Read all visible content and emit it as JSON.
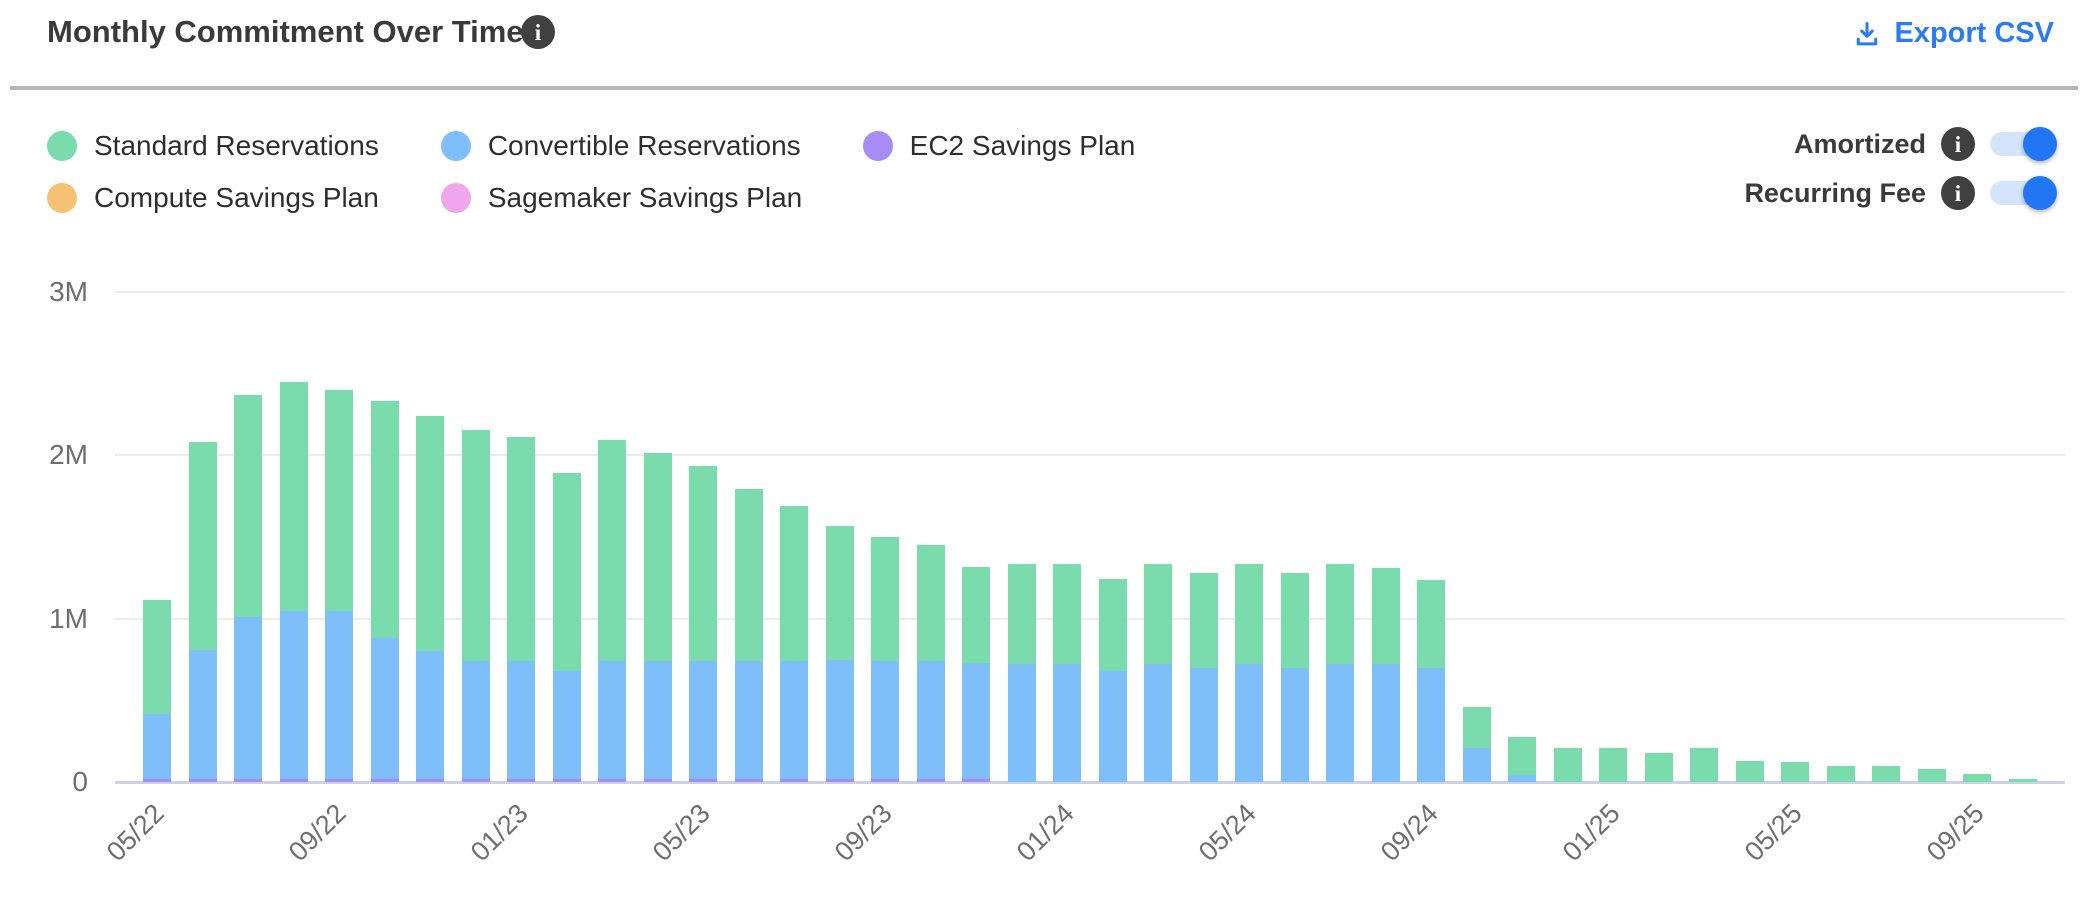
{
  "header": {
    "title": "Monthly Commitment Over Time",
    "export_label": "Export CSV",
    "info_glyph": "i"
  },
  "legend": {
    "items": [
      {
        "label": "Standard Reservations",
        "color": "#7adbad"
      },
      {
        "label": "Convertible Reservations",
        "color": "#7ebef9"
      },
      {
        "label": "EC2 Savings Plan",
        "color": "#a78cf8"
      },
      {
        "label": "Compute Savings Plan",
        "color": "#f5c274"
      },
      {
        "label": "Sagemaker Savings Plan",
        "color": "#f0a6ec"
      }
    ]
  },
  "toggles": [
    {
      "label": "Amortized",
      "state": "on"
    },
    {
      "label": "Recurring Fee",
      "state": "on"
    }
  ],
  "colors": {
    "export_link": "#2b7bf3",
    "toggle_knob": "#2176f3",
    "toggle_track": "#d3e4fb",
    "axis_text": "#6e6e6e",
    "baseline": "#cbd1e8",
    "gridline": "#ececec"
  },
  "chart_data": {
    "type": "bar",
    "stacked": true,
    "title": "Monthly Commitment Over Time",
    "xlabel": "",
    "ylabel": "",
    "unit": "M (values in millions)",
    "ylim_m": [
      0,
      3
    ],
    "y_ticks": [
      "0",
      "1M",
      "2M",
      "3M"
    ],
    "grid": "horizontal",
    "legend_position": "top-left",
    "x": [
      "05/22",
      "06/22",
      "07/22",
      "08/22",
      "09/22",
      "10/22",
      "11/22",
      "12/22",
      "01/23",
      "02/23",
      "03/23",
      "04/23",
      "05/23",
      "06/23",
      "07/23",
      "08/23",
      "09/23",
      "10/23",
      "11/23",
      "12/23",
      "01/24",
      "02/24",
      "03/24",
      "04/24",
      "05/24",
      "06/24",
      "07/24",
      "08/24",
      "09/24",
      "10/24",
      "11/24",
      "12/24",
      "01/25",
      "02/25",
      "03/25",
      "04/25",
      "05/25",
      "06/25",
      "07/25",
      "08/25",
      "09/25",
      "10/25"
    ],
    "x_shown_ticks": [
      "05/22",
      "09/22",
      "01/23",
      "05/23",
      "09/23",
      "01/24",
      "05/24",
      "09/24",
      "01/25",
      "05/25",
      "09/25"
    ],
    "series": [
      {
        "name": "EC2 Savings Plan",
        "color": "#a78cf8",
        "values": [
          0.02,
          0.02,
          0.02,
          0.02,
          0.02,
          0.02,
          0.02,
          0.02,
          0.02,
          0.02,
          0.02,
          0.02,
          0.02,
          0.02,
          0.02,
          0.02,
          0.02,
          0.02,
          0.02,
          0,
          0,
          0,
          0,
          0,
          0,
          0,
          0,
          0,
          0,
          0,
          0,
          0,
          0,
          0,
          0,
          0,
          0,
          0,
          0,
          0,
          0,
          0
        ]
      },
      {
        "name": "Convertible Reservations",
        "color": "#7ebef9",
        "values": [
          0.4,
          0.79,
          0.99,
          1.03,
          1.03,
          0.86,
          0.78,
          0.72,
          0.72,
          0.66,
          0.72,
          0.72,
          0.72,
          0.72,
          0.72,
          0.73,
          0.72,
          0.72,
          0.71,
          0.72,
          0.72,
          0.68,
          0.72,
          0.7,
          0.72,
          0.7,
          0.72,
          0.72,
          0.7,
          0.21,
          0.04,
          0,
          0,
          0,
          0,
          0,
          0,
          0,
          0,
          0,
          0,
          0
        ]
      },
      {
        "name": "Standard Reservations",
        "color": "#7adbad",
        "values": [
          0.7,
          1.27,
          1.36,
          1.4,
          1.35,
          1.45,
          1.44,
          1.41,
          1.37,
          1.21,
          1.35,
          1.27,
          1.19,
          1.05,
          0.95,
          0.82,
          0.76,
          0.71,
          0.59,
          0.61,
          0.61,
          0.56,
          0.61,
          0.58,
          0.61,
          0.58,
          0.61,
          0.59,
          0.54,
          0.25,
          0.23,
          0.21,
          0.21,
          0.18,
          0.21,
          0.13,
          0.12,
          0.1,
          0.1,
          0.08,
          0.05,
          0.02
        ]
      },
      {
        "name": "Compute Savings Plan",
        "color": "#f5c274",
        "values": [
          0,
          0,
          0,
          0,
          0,
          0,
          0,
          0,
          0,
          0,
          0,
          0,
          0,
          0,
          0,
          0,
          0,
          0,
          0,
          0,
          0,
          0,
          0,
          0,
          0,
          0,
          0,
          0,
          0,
          0,
          0,
          0,
          0,
          0,
          0,
          0,
          0,
          0,
          0,
          0,
          0,
          0
        ]
      },
      {
        "name": "Sagemaker Savings Plan",
        "color": "#f0a6ec",
        "values": [
          0,
          0,
          0,
          0,
          0,
          0,
          0,
          0,
          0,
          0,
          0,
          0,
          0,
          0,
          0,
          0,
          0,
          0,
          0,
          0,
          0,
          0,
          0,
          0,
          0,
          0,
          0,
          0,
          0,
          0,
          0,
          0,
          0,
          0,
          0,
          0,
          0,
          0,
          0,
          0,
          0,
          0
        ]
      }
    ]
  }
}
